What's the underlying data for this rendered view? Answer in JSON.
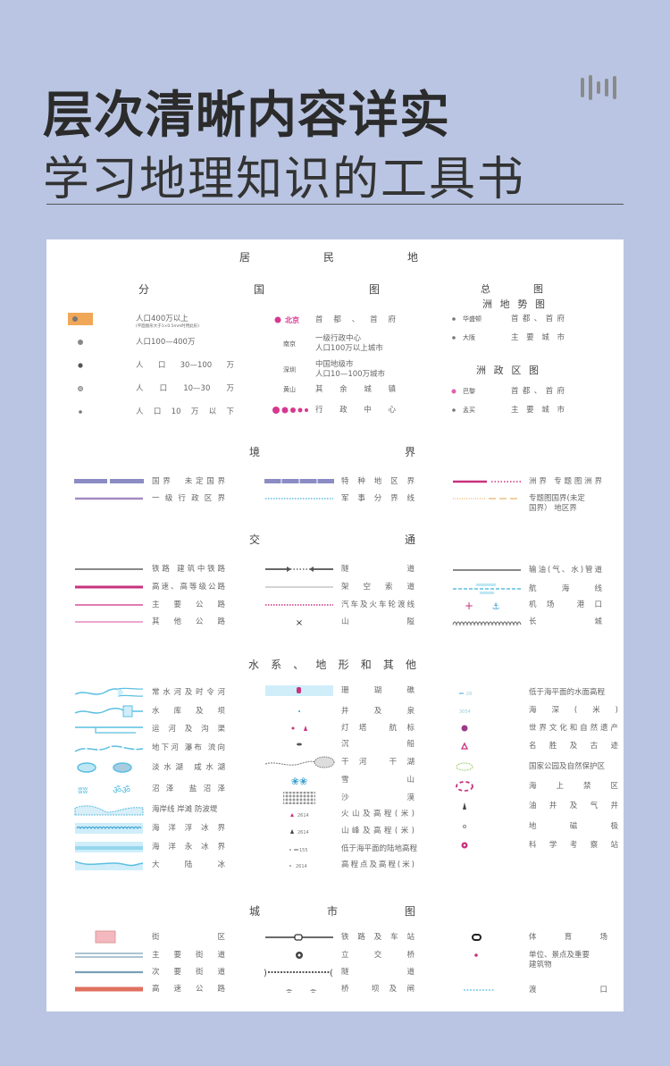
{
  "header": {
    "title": "层次清晰内容详实",
    "subtitle": "学习地理知识的工具书",
    "icon": "sound-bars-icon"
  },
  "colors": {
    "background": "#b9c5e2",
    "water": "#5bbfe0",
    "border": "#8b8cc4",
    "magenta": "#c8327f",
    "pink": "#e07ab5"
  },
  "sections": [
    {
      "title": "居民地",
      "col1": [
        {
          "label": "人口400万以上",
          "note": "(平面图形大于1×0.5mm时用此形)",
          "sym": "urban-area"
        },
        {
          "label": "人口100—400万",
          "sym": "dot-l"
        },
        {
          "label": "人口30—100万",
          "sym": "dot-m"
        },
        {
          "label": "人口10—30万",
          "sym": "dot-ring"
        },
        {
          "label": "人口10万以下",
          "sym": "dot-s"
        }
      ],
      "col2_heading": "分国图",
      "col2": [
        {
          "label": "首都、首府",
          "tag": "北京",
          "sym": "capital"
        },
        {
          "label": "一级行政中心\n人口100万以上城市",
          "tag": "南京",
          "sym": "tag-only"
        },
        {
          "label": "中国地级市\n人口10—100万城市",
          "tag": "深圳",
          "sym": "tag-only"
        },
        {
          "label": "其余城镇",
          "tag": "黄山",
          "sym": "tag-only"
        },
        {
          "label": "行政中心",
          "sym": "admin-dots"
        }
      ],
      "col3_heading": "总图",
      "col3_sub1": "洲地势图",
      "col3": [
        {
          "label": "首都、首府",
          "tag": "华盛顿",
          "sym": "dot-s"
        },
        {
          "label": "主要城市",
          "tag": "大阪",
          "sym": "dot-s"
        }
      ],
      "col3_sub2": "洲政区图",
      "col3b": [
        {
          "label": "首都、首府",
          "tag": "巴黎",
          "sym": "dot-magenta"
        },
        {
          "label": "主要城市",
          "tag": "孟买",
          "sym": "dot-s"
        }
      ]
    },
    {
      "title": "境界",
      "col1": [
        {
          "label": "国界　未定国界",
          "sym": "border-intl"
        },
        {
          "label": "一级行政区界",
          "sym": "border-admin"
        }
      ],
      "col2": [
        {
          "label": "特种地区界",
          "sym": "border-special"
        },
        {
          "label": "军事分界线",
          "sym": "dotted-cyan"
        }
      ],
      "col3": [
        {
          "label": "洲界 专题图洲界",
          "sym": "continent-border"
        },
        {
          "label": "专题图国界(未定\n国界） 地区界",
          "sym": "orange-dash"
        }
      ]
    },
    {
      "title": "交通",
      "col1": [
        {
          "label": "铁路 建筑中铁路",
          "sym": "line-gray"
        },
        {
          "label": "高速、高等级公路",
          "sym": "line-magenta"
        },
        {
          "label": "主要公路",
          "sym": "line-pink"
        },
        {
          "label": "其他公路",
          "sym": "line-pink-thin"
        }
      ],
      "col2": [
        {
          "label": "隧道",
          "sym": "tunnel"
        },
        {
          "label": "架空索道",
          "sym": "line-thin"
        },
        {
          "label": "汽车及火车轮渡线",
          "sym": "dotted-magenta"
        },
        {
          "label": "山隘",
          "sym": "pass"
        }
      ],
      "col3": [
        {
          "label": "输油(气、水)管道",
          "sym": "line-gray"
        },
        {
          "label": "航海线",
          "sym": "sealane"
        },
        {
          "label": "机场 港口",
          "sym": "airport-port"
        },
        {
          "label": "长城",
          "sym": "wall"
        }
      ]
    },
    {
      "title": "水系、地形和其他",
      "col1": [
        {
          "label": "常水河及时令河",
          "sym": "river"
        },
        {
          "label": "水库及坝",
          "sym": "reservoir"
        },
        {
          "label": "运河及沟渠",
          "sym": "canal"
        },
        {
          "label": "地下河 瀑布 流向",
          "sym": "underground"
        },
        {
          "label": "淡水湖 咸水湖",
          "sym": "lakes"
        },
        {
          "label": "沼泽 盐沼泽",
          "sym": "swamp"
        },
        {
          "label": "海岸线 岸滩 防波堤",
          "sym": "coast"
        },
        {
          "label": "海洋浮冰界",
          "sym": "floe"
        },
        {
          "label": "海洋永冰界",
          "sym": "perm-ice"
        },
        {
          "label": "大陆冰",
          "sym": "icecap"
        }
      ],
      "col2": [
        {
          "label": "珊瑚礁",
          "sym": "reef"
        },
        {
          "label": "井及泉",
          "sym": "well"
        },
        {
          "label": "灯塔 航标",
          "sym": "lighthouse"
        },
        {
          "label": "沉船",
          "sym": "wreck"
        },
        {
          "label": "干河 干湖",
          "sym": "dry-river"
        },
        {
          "label": "雪山",
          "sym": "snow"
        },
        {
          "label": "沙漠",
          "sym": "desert"
        },
        {
          "label": "火山及高程(米)",
          "sym": "volcano"
        },
        {
          "label": "山峰及高程(米)",
          "sym": "peak"
        },
        {
          "label": "低于海平面的陆地高程",
          "sym": "below-sea"
        },
        {
          "label": "高程点及高程(米)",
          "sym": "spot-height"
        }
      ],
      "col3": [
        {
          "label": "低于海平面的水面高程",
          "sym": "water-below"
        },
        {
          "label": "海深(米)",
          "sym": "depth"
        },
        {
          "label": "世界文化和自然遗产",
          "sym": "heritage"
        },
        {
          "label": "名胜及古迹",
          "sym": "scenic"
        },
        {
          "label": "国家公园及自然保护区",
          "sym": "park"
        },
        {
          "label": "海上禁区",
          "sym": "sea-restricted"
        },
        {
          "label": "油井及气井",
          "sym": "oil-well"
        },
        {
          "label": "地磁极",
          "sym": "magnetic-pole"
        },
        {
          "label": "科学考察站",
          "sym": "station"
        }
      ]
    },
    {
      "title": "城市图",
      "col1": [
        {
          "label": "街区",
          "sym": "block"
        },
        {
          "label": "主要街道",
          "sym": "street-main"
        },
        {
          "label": "次要街道",
          "sym": "street-minor"
        },
        {
          "label": "高速公路",
          "sym": "highway"
        }
      ],
      "col2": [
        {
          "label": "铁路及车站",
          "sym": "rail-station"
        },
        {
          "label": "立交桥",
          "sym": "interchange"
        },
        {
          "label": "隧道",
          "sym": "city-tunnel"
        },
        {
          "label": "桥 坝及闸",
          "sym": "bridge"
        }
      ],
      "col3": [
        {
          "label": "体育场",
          "sym": "stadium"
        },
        {
          "label": "单位、景点及重要\n建筑物",
          "sym": "poi"
        },
        {
          "label": "渡口",
          "sym": "ferry"
        }
      ]
    }
  ]
}
